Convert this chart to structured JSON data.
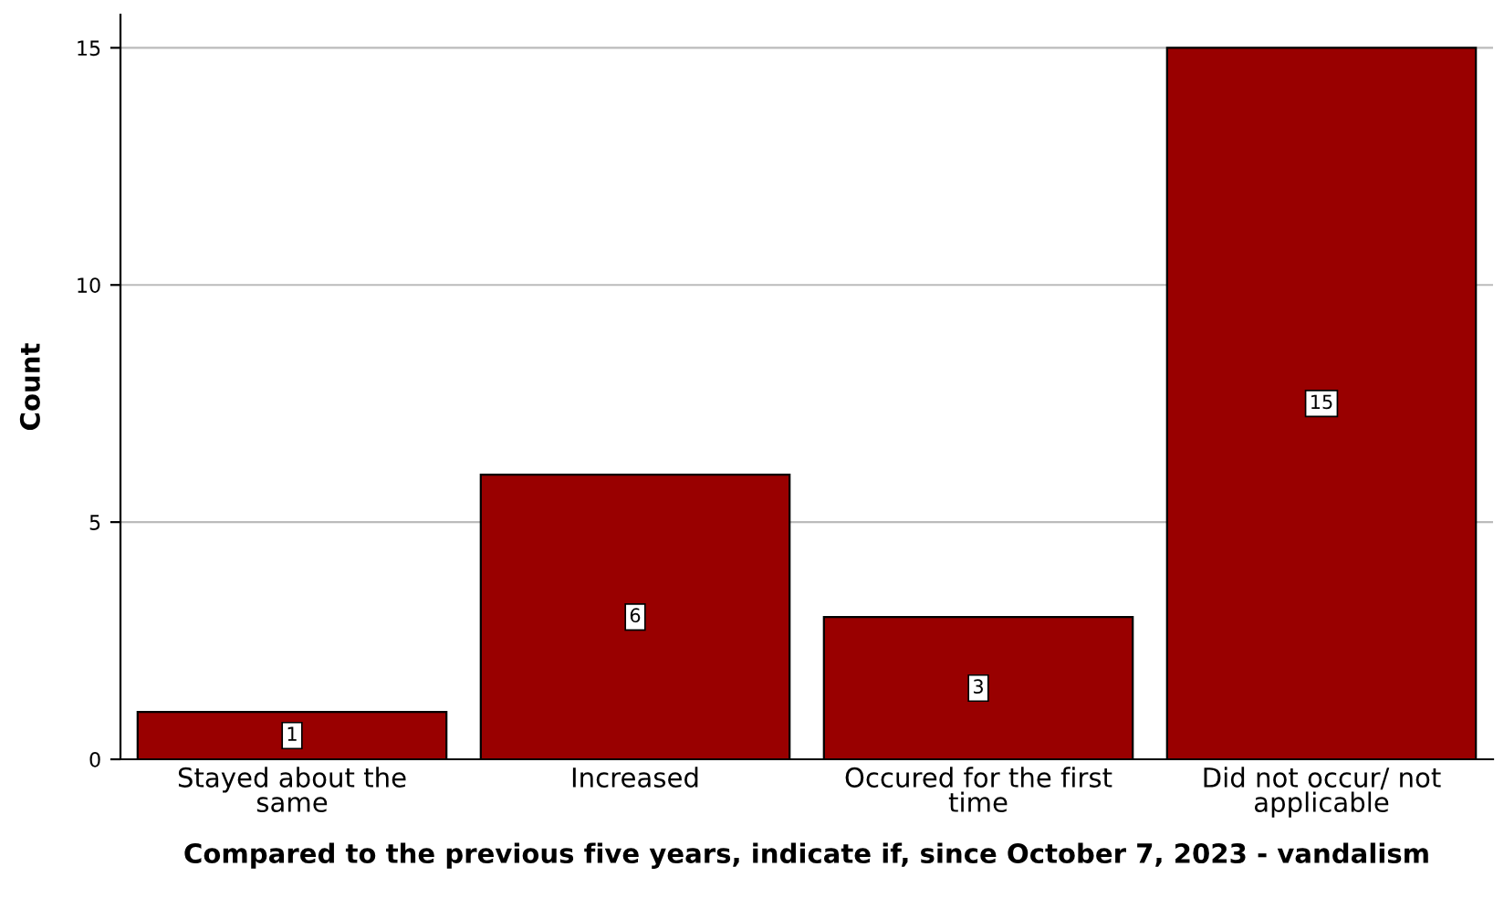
{
  "chart_data": {
    "type": "bar",
    "xlabel": "Compared to the previous five years, indicate if, since October 7, 2023 - vandalism",
    "ylabel": "Count",
    "categories": [
      "Stayed about the\nsame",
      "Increased",
      "Occured for the first\ntime",
      "Did not occur/ not\napplicable"
    ],
    "values": [
      1,
      6,
      3,
      15
    ],
    "color": "#990000",
    "ylim": [
      0,
      15.7
    ],
    "yticks": [
      0,
      5,
      10,
      15
    ],
    "grid": "y",
    "data_labels": true
  }
}
